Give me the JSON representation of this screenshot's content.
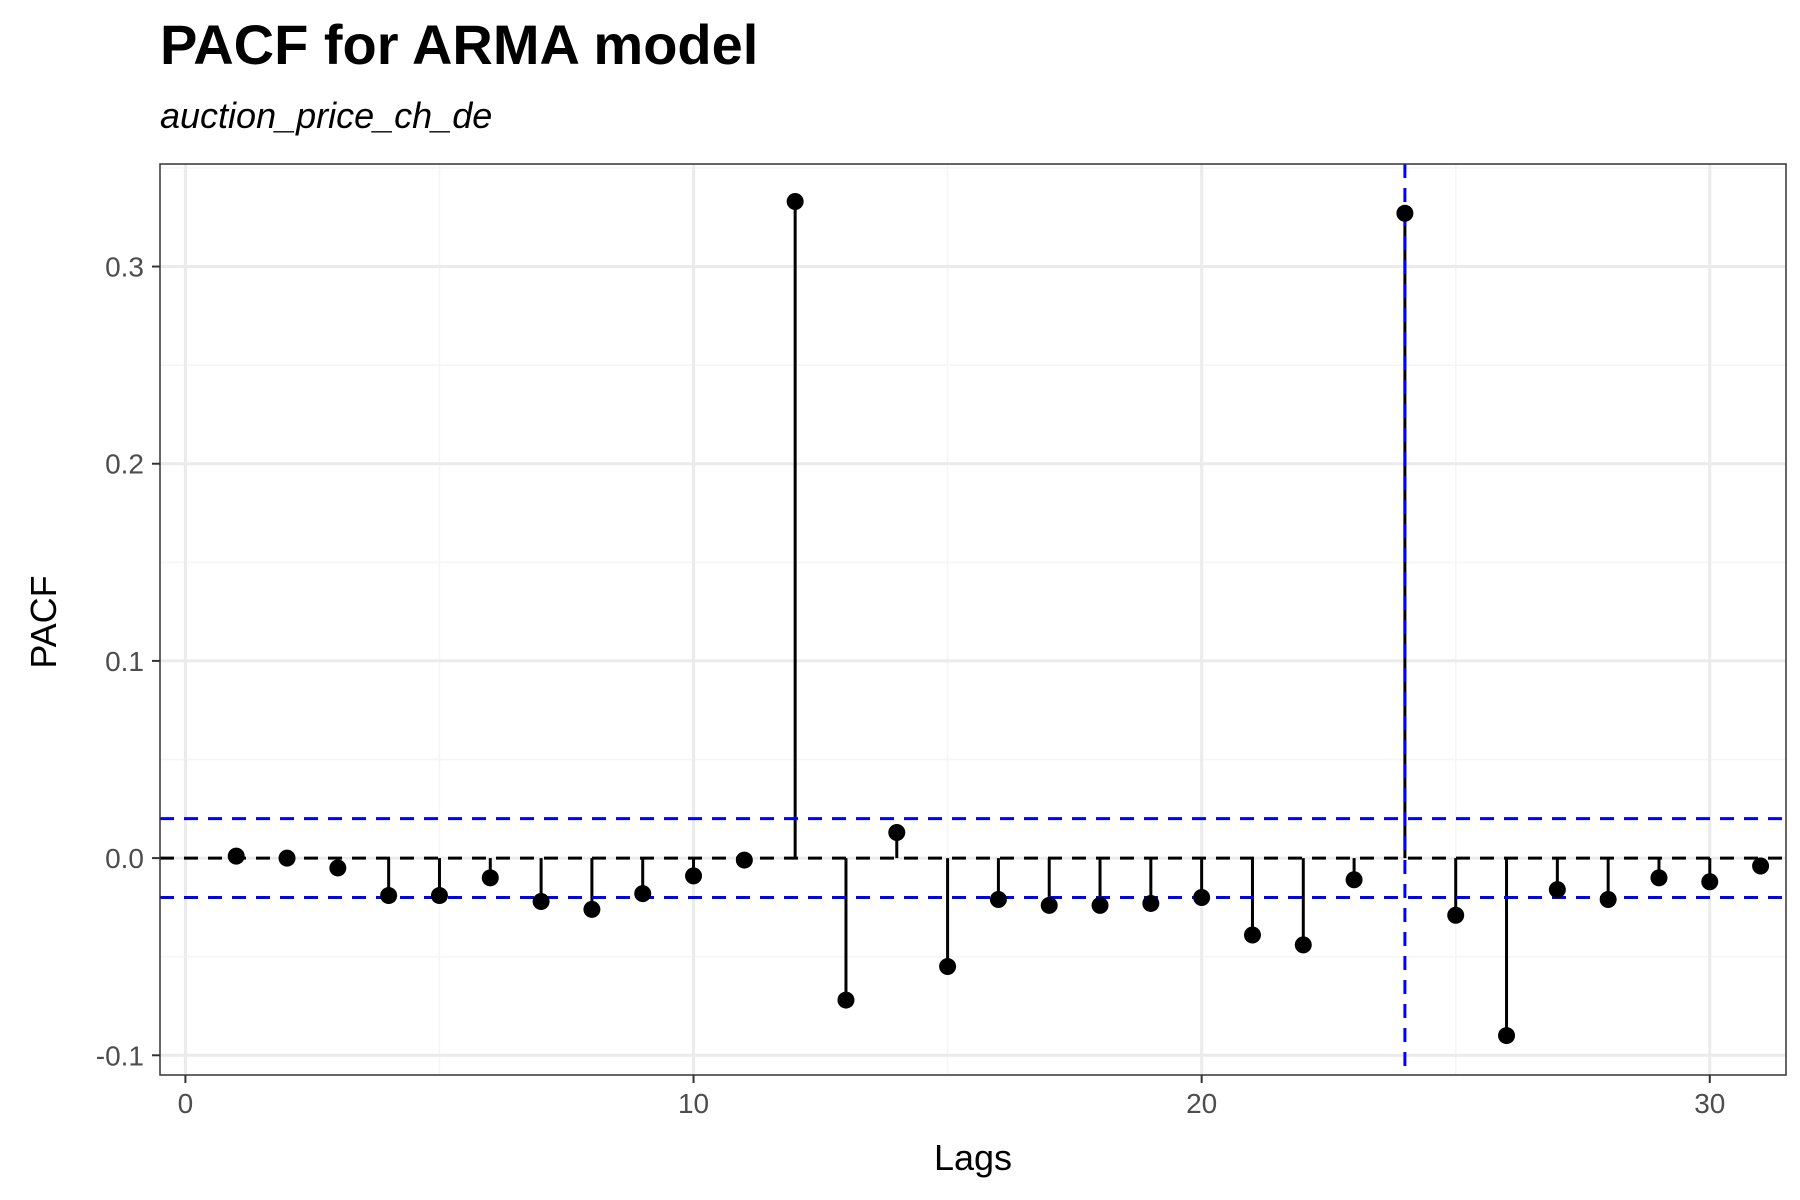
{
  "chart_data": {
    "type": "lollipop",
    "title": "PACF for ARMA model",
    "subtitle": "auction_price_ch_de",
    "xlabel": "Lags",
    "ylabel": "PACF",
    "xlim": [
      -0.5,
      31.5
    ],
    "ylim": [
      -0.11,
      0.352
    ],
    "x_ticks": [
      0,
      10,
      20,
      30
    ],
    "x_tick_labels": [
      "0",
      "10",
      "20",
      "30"
    ],
    "y_ticks": [
      -0.1,
      0.0,
      0.1,
      0.2,
      0.3
    ],
    "y_tick_labels": [
      "-0.1",
      "0.0",
      "0.1",
      "0.2",
      "0.3"
    ],
    "grid": true,
    "x": [
      1,
      2,
      3,
      4,
      5,
      6,
      7,
      8,
      9,
      10,
      11,
      12,
      13,
      14,
      15,
      16,
      17,
      18,
      19,
      20,
      21,
      22,
      23,
      24,
      25,
      26,
      27,
      28,
      29,
      30,
      31
    ],
    "values": [
      0.001,
      0.0,
      -0.005,
      -0.019,
      -0.019,
      -0.01,
      -0.022,
      -0.026,
      -0.018,
      -0.009,
      -0.001,
      0.333,
      -0.072,
      0.013,
      -0.055,
      -0.021,
      -0.024,
      -0.024,
      -0.023,
      -0.02,
      -0.039,
      -0.044,
      -0.011,
      0.327,
      -0.029,
      -0.09,
      -0.016,
      -0.021,
      -0.01,
      -0.012,
      -0.004
    ],
    "confidence_bounds": [
      0.02,
      -0.02
    ],
    "vertical_reference_x": 24,
    "colors": {
      "stem": "#000000",
      "point": "#000000",
      "zero_line": "#000000",
      "confidence_line": "#0000ff",
      "reference_line": "#0000ff",
      "grid_major": "#ebebeb",
      "grid_minor": "#f5f5f5",
      "panel_border": "#333333"
    }
  }
}
